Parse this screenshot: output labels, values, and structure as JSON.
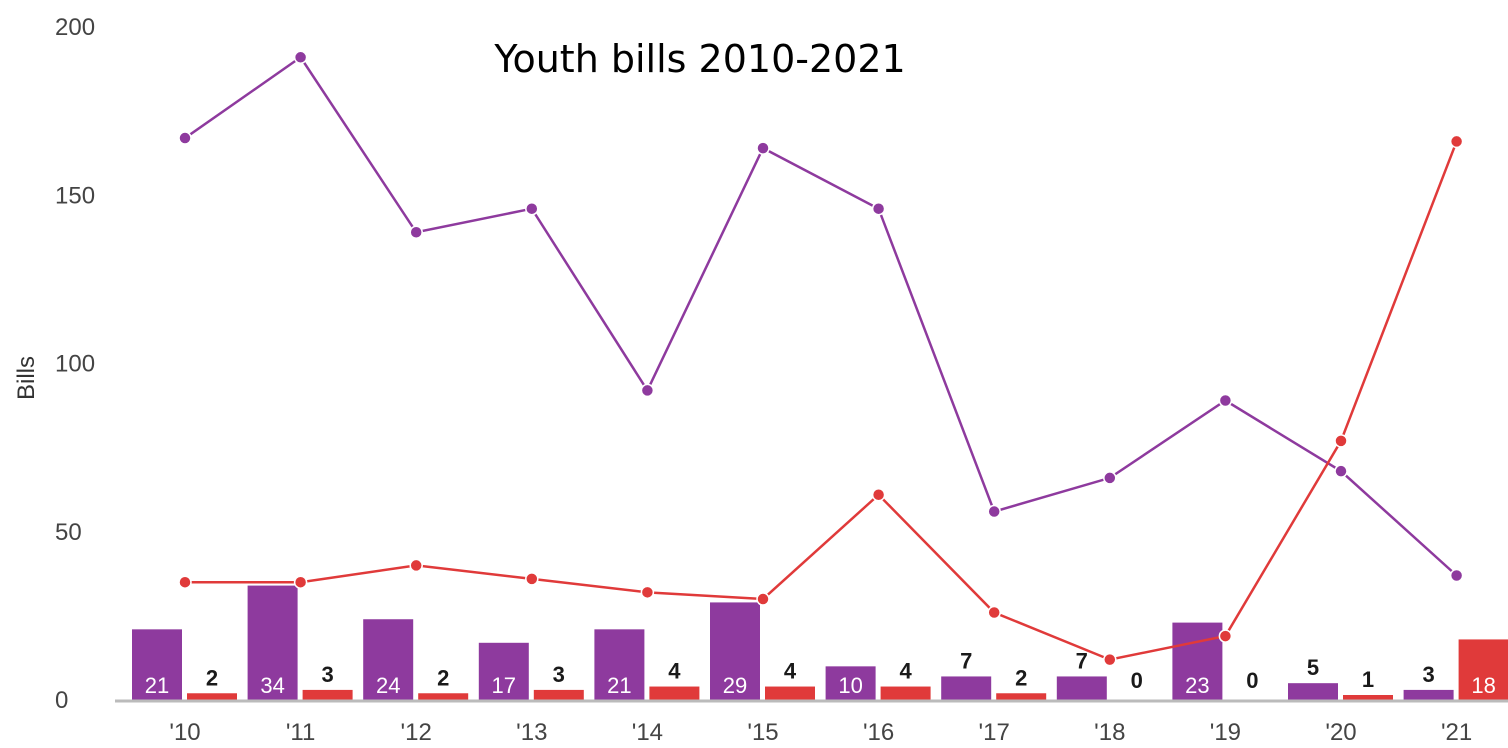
{
  "chart_data": {
    "type": "bar",
    "title": "Youth bills 2010-2021",
    "xlabel": "",
    "ylabel": "Bills",
    "ylim": [
      0,
      200
    ],
    "yticks": [
      "0",
      "50",
      "100",
      "150",
      "200"
    ],
    "categories": [
      "'10",
      "'11",
      "'12",
      "'13",
      "'14",
      "'15",
      "'16",
      "'17",
      "'18",
      "'19",
      "'20",
      "'21"
    ],
    "bar_series": [
      {
        "color": "#8e3a9e",
        "values": [
          21,
          34,
          24,
          17,
          21,
          29,
          10,
          7,
          7,
          23,
          5,
          3
        ]
      },
      {
        "color": "#e03a3a",
        "values": [
          2,
          3,
          2,
          3,
          4,
          4,
          4,
          2,
          0,
          0,
          1,
          18
        ]
      }
    ],
    "line_series": [
      {
        "color": "#8e3a9e",
        "values": [
          167,
          191,
          139,
          146,
          92,
          164,
          146,
          56,
          66,
          89,
          68,
          37
        ]
      },
      {
        "color": "#e03a3a",
        "values": [
          35,
          35,
          40,
          36,
          32,
          30,
          61,
          26,
          12,
          19,
          77,
          166
        ]
      }
    ],
    "grid": false,
    "legend": "none"
  }
}
